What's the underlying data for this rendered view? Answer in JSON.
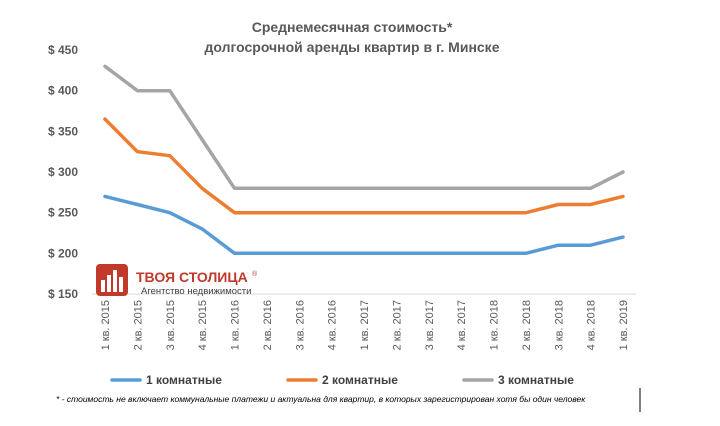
{
  "chart_data": {
    "type": "line",
    "title": [
      "Среднемесячная стоимость*",
      "долгосрочной аренды квартир в г. Минске"
    ],
    "categories": [
      "1 кв. 2015",
      "2 кв. 2015",
      "3 кв. 2015",
      "4 кв. 2015",
      "1 кв. 2016",
      "2 кв. 2016",
      "3 кв. 2016",
      "4 кв. 2016",
      "1 кв. 2017",
      "2 кв. 2017",
      "3 кв. 2017",
      "4 кв. 2017",
      "1 кв. 2018",
      "2 кв. 2018",
      "3 кв. 2018",
      "4 кв. 2018",
      "1 кв. 2019"
    ],
    "series": [
      {
        "name": "1 комнатные",
        "color": "#5b9bd5",
        "values": [
          270,
          260,
          250,
          230,
          200,
          200,
          200,
          200,
          200,
          200,
          200,
          200,
          200,
          200,
          210,
          210,
          220
        ]
      },
      {
        "name": "2 комнатные",
        "color": "#ed7d31",
        "values": [
          365,
          325,
          320,
          280,
          250,
          250,
          250,
          250,
          250,
          250,
          250,
          250,
          250,
          250,
          260,
          260,
          270
        ]
      },
      {
        "name": "3 комнатные",
        "color": "#a5a5a5",
        "values": [
          430,
          400,
          400,
          340,
          280,
          280,
          280,
          280,
          280,
          280,
          280,
          280,
          280,
          280,
          280,
          280,
          300
        ]
      }
    ],
    "yticks": [
      "$ 150",
      "$ 200",
      "$ 250",
      "$ 300",
      "$ 350",
      "$ 400",
      "$ 450"
    ],
    "ylim": [
      150,
      450
    ],
    "grid": false,
    "legend": "bottom"
  },
  "footnote": "* - стоимость не включает коммунальные платежи и актуальна для квартир, в которых зарегистрирован хотя бы один человек",
  "logo": {
    "name": "ТВОЯ СТОЛИЦА",
    "reg": "®",
    "subtitle": "Агентство недвижимости"
  }
}
